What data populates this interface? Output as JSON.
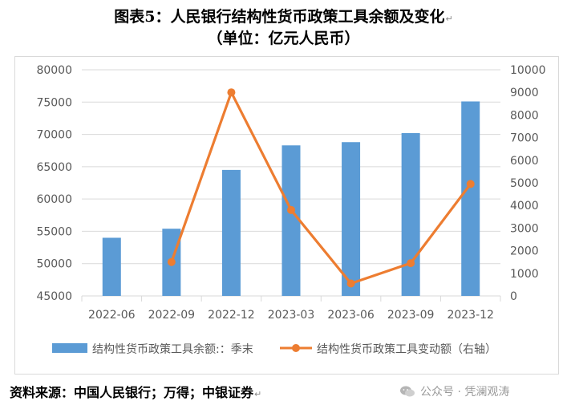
{
  "header": {
    "title_line1": "图表5：人民银行结构性货币政策工具余额及变化",
    "title_line2": "（单位：亿元人民币）"
  },
  "source": "资料来源：中国人民银行；万得；中银证券",
  "watermark": "公众号 · 凭澜观涛",
  "colors": {
    "bar": "#5b9bd5",
    "line": "#ed7d31",
    "grid": "#d9d9d9",
    "axis_text": "#595959"
  },
  "chart_data": {
    "type": "bar+line",
    "categories": [
      "2022-06",
      "2022-09",
      "2022-12",
      "2023-03",
      "2023-06",
      "2023-09",
      "2023-12"
    ],
    "series": [
      {
        "name": "结构性货币政策工具余额:：季末",
        "type": "bar",
        "axis": "left",
        "values": [
          54000,
          55400,
          64500,
          68300,
          68800,
          70200,
          75100
        ]
      },
      {
        "name": "结构性货币政策工具变动额（右轴）",
        "type": "line",
        "axis": "right",
        "values": [
          null,
          1500,
          9000,
          3800,
          550,
          1450,
          4950
        ]
      }
    ],
    "y_left": {
      "min": 45000,
      "max": 80000,
      "ticks": [
        45000,
        50000,
        55000,
        60000,
        65000,
        70000,
        75000,
        80000
      ]
    },
    "y_right": {
      "min": 0,
      "max": 10000,
      "ticks": [
        0,
        1000,
        2000,
        3000,
        4000,
        5000,
        6000,
        7000,
        8000,
        9000,
        10000
      ]
    },
    "grid": true,
    "legend_position": "bottom"
  }
}
